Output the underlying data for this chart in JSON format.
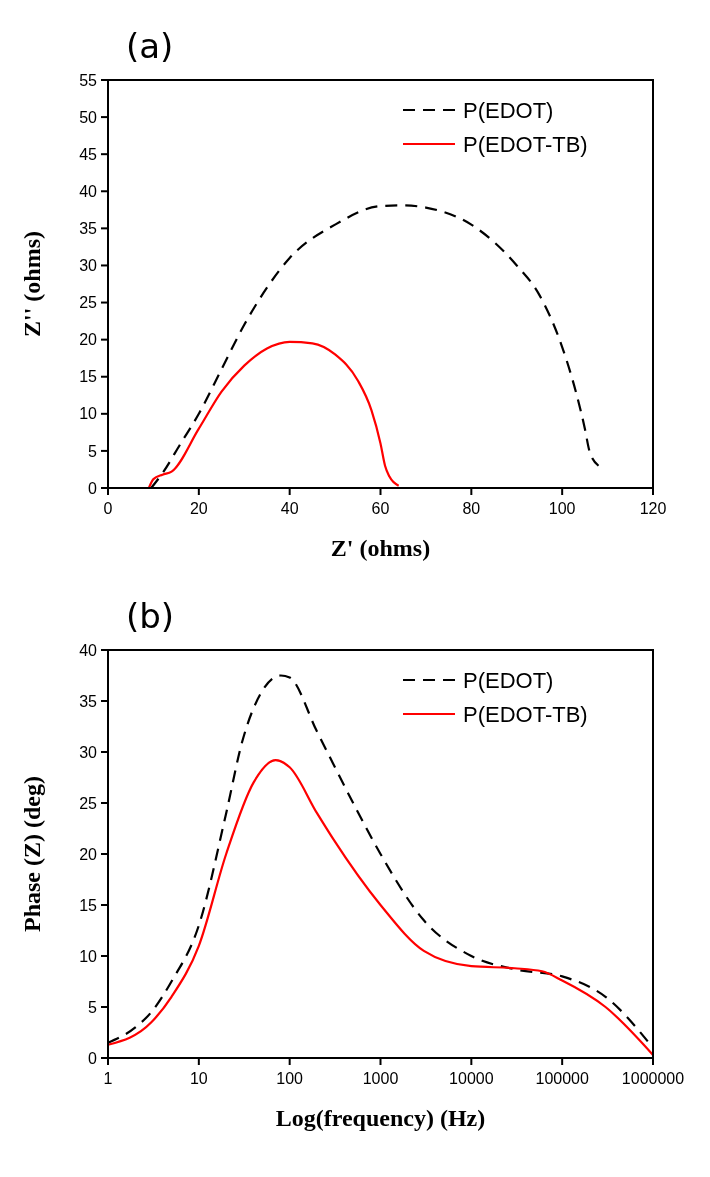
{
  "chart_data": [
    {
      "type": "line",
      "title": "(a)",
      "xlabel": "Z' (ohms)",
      "ylabel": "Z'' (ohms)",
      "xlim": [
        0,
        120
      ],
      "ylim": [
        0,
        55
      ],
      "xticks": [
        0,
        20,
        40,
        60,
        80,
        100,
        120
      ],
      "yticks": [
        0,
        5,
        10,
        15,
        20,
        25,
        30,
        35,
        40,
        45,
        50,
        55
      ],
      "legend": "top right",
      "grid": false,
      "series": [
        {
          "name": "P(EDOT)",
          "color": "#000000",
          "line_style": "dashed",
          "x": [
            9.5,
            12,
            16,
            20,
            25,
            30,
            35,
            40,
            50,
            60,
            65,
            70,
            80,
            90,
            95,
            100,
            103,
            105,
            106,
            108
          ],
          "values": [
            0,
            2,
            6,
            10,
            16,
            22,
            27,
            31,
            35.5,
            38,
            38.1,
            37.8,
            35.5,
            30,
            26,
            19,
            13,
            8,
            5,
            3
          ]
        },
        {
          "name": "P(EDOT-TB)",
          "color": "#ff0000",
          "line_style": "solid",
          "x": [
            9,
            10,
            12,
            14,
            20,
            25,
            30,
            35,
            40,
            45,
            50,
            55,
            58,
            60,
            61,
            62,
            64
          ],
          "values": [
            0,
            1.2,
            1.8,
            2.2,
            8,
            13,
            16.5,
            18.8,
            19.7,
            19.5,
            18,
            14.5,
            10.5,
            6,
            3,
            1.5,
            0.3
          ]
        }
      ]
    },
    {
      "type": "line",
      "title": "(b)",
      "xlabel": "Log(frequency) (Hz)",
      "ylabel": "Phase (Z) (deg)",
      "log": "x",
      "xlim": [
        1,
        1000000
      ],
      "ylim": [
        0,
        40
      ],
      "xticks": [
        1,
        10,
        100,
        1000,
        10000,
        100000,
        1000000
      ],
      "yticks": [
        0,
        5,
        10,
        15,
        20,
        25,
        30,
        35,
        40
      ],
      "legend": "top right",
      "grid": false,
      "series": [
        {
          "name": "P(EDOT)",
          "color": "#000000",
          "line_style": "dashed",
          "x": [
            1,
            2,
            3,
            5,
            10,
            20,
            30,
            50,
            80,
            100,
            200,
            500,
            1000,
            3000,
            10000,
            30000,
            100000,
            300000,
            1000000
          ],
          "values": [
            1.5,
            3,
            4.5,
            7.5,
            13,
            24,
            31,
            36,
            37.5,
            37.3,
            32,
            25,
            20,
            13.5,
            10,
            8.7,
            8,
            6,
            1
          ]
        },
        {
          "name": "P(EDOT-TB)",
          "color": "#ff0000",
          "line_style": "solid",
          "x": [
            1,
            3,
            5,
            10,
            20,
            40,
            70,
            100,
            200,
            300,
            1000,
            3000,
            10000,
            30000,
            60000,
            100000,
            300000,
            1000000
          ],
          "values": [
            1.3,
            3.5,
            6,
            11,
            20,
            27,
            29.2,
            28.5,
            24,
            21.5,
            15,
            10.5,
            9,
            8.8,
            8.5,
            7.6,
            5,
            0.3
          ]
        }
      ]
    }
  ]
}
